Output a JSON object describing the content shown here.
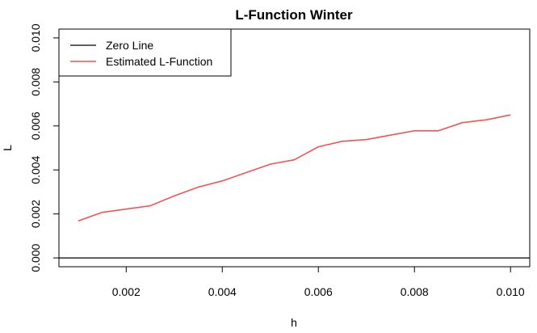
{
  "chart_data": {
    "type": "line",
    "title": "L-Function Winter",
    "xlabel": "h",
    "ylabel": "L",
    "xlim": [
      0.0006,
      0.0104
    ],
    "ylim": [
      -0.0004,
      0.0104
    ],
    "x_ticks": [
      0.002,
      0.004,
      0.006,
      0.008,
      0.01
    ],
    "x_tick_labels": [
      "0.002",
      "0.004",
      "0.006",
      "0.008",
      "0.010"
    ],
    "y_ticks": [
      0.0,
      0.002,
      0.004,
      0.006,
      0.008,
      0.01
    ],
    "y_tick_labels": [
      "0.000",
      "0.002",
      "0.004",
      "0.006",
      "0.008",
      "0.010"
    ],
    "grid": false,
    "legend_position": "top-left",
    "series": [
      {
        "name": "Zero Line",
        "color": "#000000",
        "x": [
          0.0006,
          0.0104
        ],
        "y": [
          0.0,
          0.0
        ]
      },
      {
        "name": "Estimated L-Function",
        "color": "#ee5555",
        "x": [
          0.001,
          0.0015,
          0.002,
          0.0025,
          0.003,
          0.0035,
          0.004,
          0.0045,
          0.005,
          0.0055,
          0.006,
          0.0065,
          0.007,
          0.0075,
          0.008,
          0.0085,
          0.009,
          0.0095,
          0.01
        ],
        "y": [
          0.00168,
          0.00207,
          0.00222,
          0.00237,
          0.00282,
          0.00322,
          0.0035,
          0.00388,
          0.00426,
          0.00446,
          0.00505,
          0.0053,
          0.00538,
          0.00558,
          0.00578,
          0.00578,
          0.00615,
          0.00628,
          0.0065
        ]
      }
    ]
  }
}
